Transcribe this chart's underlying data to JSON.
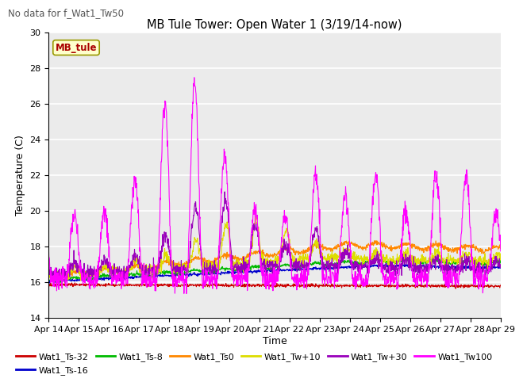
{
  "title": "MB Tule Tower: Open Water 1 (3/19/14-now)",
  "suptitle": "No data for f_Wat1_Tw50",
  "ylabel": "Temperature (C)",
  "xlabel": "Time",
  "ylim": [
    14,
    30
  ],
  "yticks": [
    14,
    16,
    18,
    20,
    22,
    24,
    26,
    28,
    30
  ],
  "xlim": [
    0,
    15
  ],
  "xtick_labels": [
    "Apr 14",
    "Apr 15",
    "Apr 16",
    "Apr 17",
    "Apr 18",
    "Apr 19",
    "Apr 20",
    "Apr 21",
    "Apr 22",
    "Apr 23",
    "Apr 24",
    "Apr 25",
    "Apr 26",
    "Apr 27",
    "Apr 28",
    "Apr 29"
  ],
  "series_colors": {
    "Wat1_Ts-32": "#cc0000",
    "Wat1_Ts-16": "#0000cc",
    "Wat1_Ts-8": "#00bb00",
    "Wat1_Ts0": "#ff8800",
    "Wat1_Tw+10": "#dddd00",
    "Wat1_Tw+30": "#9900bb",
    "Wat1_Tw100": "#ff00ff"
  },
  "legend_box_color": "#ffffcc",
  "legend_box_text": "MB_tule",
  "legend_box_text_color": "#aa0000",
  "plot_bg_color": "#ebebeb"
}
